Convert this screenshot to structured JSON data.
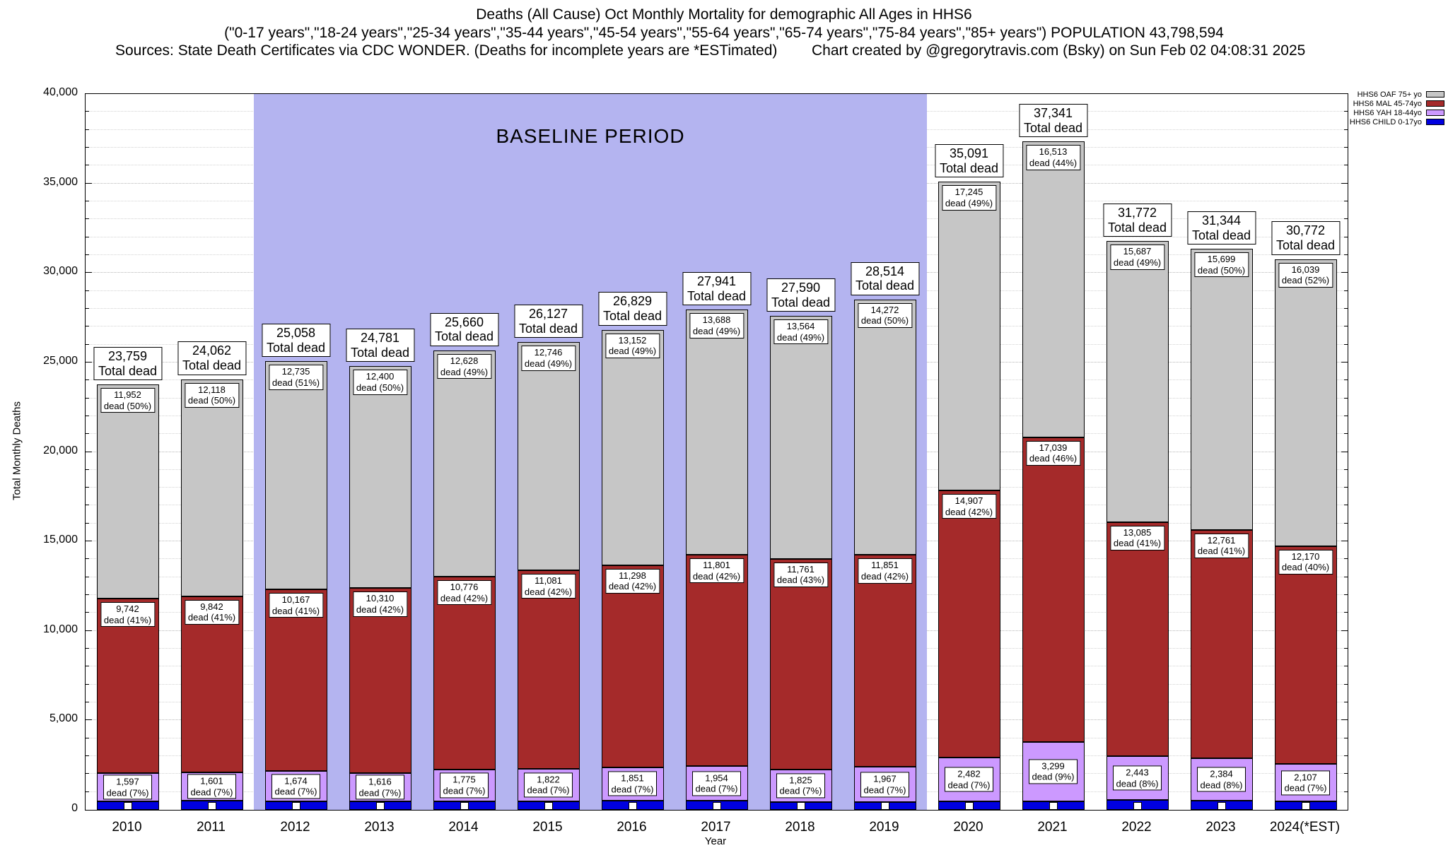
{
  "header": {
    "line1": "Deaths (All Cause) Oct Monthly Mortality for demographic All Ages in HHS6",
    "line2": "(\"0-17 years\",\"18-24 years\",\"25-34 years\",\"35-44 years\",\"45-54 years\",\"55-64 years\",\"65-74 years\",\"75-84 years\",\"85+ years\") POPULATION 43,798,594",
    "sources": "Sources: State Death Certificates via CDC WONDER. (Deaths for incomplete years are *ESTimated)",
    "credit": "Chart created by @gregorytravis.com (Bsky) on Sun Feb 02 04:08:31 2025"
  },
  "chart_data": {
    "type": "bar",
    "stacked": true,
    "title": "Deaths (All Cause) Oct Monthly Mortality for demographic All Ages in HHS6",
    "xlabel": "Year",
    "ylabel": "Total Monthly Deaths",
    "ylim": [
      0,
      40000
    ],
    "ytick_step": 5000,
    "gridline_step": 1000,
    "grid": true,
    "legend_position": "top-right",
    "yticks": [
      "0",
      "5,000",
      "10,000",
      "15,000",
      "20,000",
      "25,000",
      "30,000",
      "35,000",
      "40,000"
    ],
    "categories": [
      "2010",
      "2011",
      "2012",
      "2013",
      "2014",
      "2015",
      "2016",
      "2017",
      "2018",
      "2019",
      "2020",
      "2021",
      "2022",
      "2023",
      "2024(*EST)"
    ],
    "baseline_region": {
      "label": "BASELINE PERIOD",
      "start_category": "2012",
      "end_category": "2019",
      "color": "#b4b4f0"
    },
    "labels": {
      "total_caption": "Total dead",
      "dead_word": "dead"
    },
    "totals": {
      "values": [
        23759,
        24062,
        25058,
        24781,
        25660,
        26127,
        26829,
        27941,
        27590,
        28514,
        35091,
        37341,
        31772,
        31344,
        30772
      ],
      "texts": [
        "23,759",
        "24,062",
        "25,058",
        "24,781",
        "25,660",
        "26,127",
        "26,829",
        "27,941",
        "27,590",
        "28,514",
        "35,091",
        "37,341",
        "31,772",
        "31,344",
        "30,772"
      ]
    },
    "series": [
      {
        "key": "child",
        "name": "HHS6 CHILD 0-17yo",
        "color": "#0000e0",
        "values": [
          468,
          501,
          482,
          455,
          481,
          478,
          528,
          498,
          440,
          424,
          457,
          490,
          557,
          500,
          456
        ]
      },
      {
        "key": "yah",
        "name": "HHS6 YAH 18-44yo",
        "color": "#cc99ff",
        "values": [
          1597,
          1601,
          1674,
          1616,
          1775,
          1822,
          1851,
          1954,
          1825,
          1967,
          2482,
          3299,
          2443,
          2384,
          2107
        ],
        "texts": [
          "1,597",
          "1,601",
          "1,674",
          "1,616",
          "1,775",
          "1,822",
          "1,851",
          "1,954",
          "1,825",
          "1,967",
          "2,482",
          "3,299",
          "2,443",
          "2,384",
          "2,107"
        ],
        "pcts": [
          "7%",
          "7%",
          "7%",
          "7%",
          "7%",
          "7%",
          "7%",
          "7%",
          "7%",
          "7%",
          "7%",
          "9%",
          "8%",
          "8%",
          "7%"
        ]
      },
      {
        "key": "mal",
        "name": "HHS6 MAL 45-74yo",
        "color": "#a52a2a",
        "values": [
          9742,
          9842,
          10167,
          10310,
          10776,
          11081,
          11298,
          11801,
          11761,
          11851,
          14907,
          17039,
          13085,
          12761,
          12170
        ],
        "texts": [
          "9,742",
          "9,842",
          "10,167",
          "10,310",
          "10,776",
          "11,081",
          "11,298",
          "11,801",
          "11,761",
          "11,851",
          "14,907",
          "17,039",
          "13,085",
          "12,761",
          "12,170"
        ],
        "pcts": [
          "41%",
          "41%",
          "41%",
          "42%",
          "42%",
          "42%",
          "42%",
          "42%",
          "43%",
          "42%",
          "42%",
          "46%",
          "41%",
          "41%",
          "40%"
        ]
      },
      {
        "key": "oaf",
        "name": "HHS6 OAF 75+ yo",
        "color": "#c6c6c6",
        "values": [
          11952,
          12118,
          12735,
          12400,
          12628,
          12746,
          13152,
          13688,
          13564,
          14272,
          17245,
          16513,
          15687,
          15699,
          16039
        ],
        "texts": [
          "11,952",
          "12,118",
          "12,735",
          "12,400",
          "12,628",
          "12,746",
          "13,152",
          "13,688",
          "13,564",
          "14,272",
          "17,245",
          "16,513",
          "15,687",
          "15,699",
          "16,039"
        ],
        "pcts": [
          "50%",
          "50%",
          "51%",
          "50%",
          "49%",
          "49%",
          "49%",
          "49%",
          "49%",
          "50%",
          "49%",
          "44%",
          "49%",
          "50%",
          "52%"
        ]
      }
    ],
    "legend": [
      {
        "label": "HHS6 OAF 75+ yo",
        "color": "#c6c6c6"
      },
      {
        "label": "HHS6 MAL 45-74yo",
        "color": "#a52a2a"
      },
      {
        "label": "HHS6 YAH 18-44yo",
        "color": "#cc99ff"
      },
      {
        "label": "HHS6 CHILD 0-17yo",
        "color": "#0000e0"
      }
    ]
  }
}
